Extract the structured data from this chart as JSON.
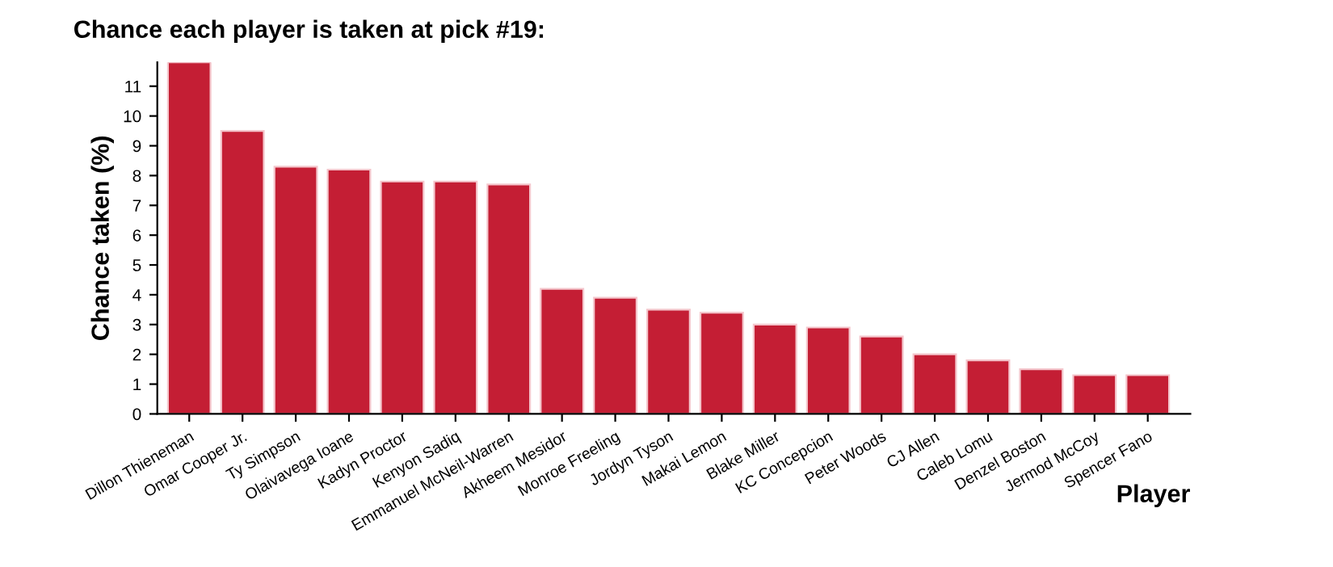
{
  "chart_data": {
    "type": "bar",
    "title": "Chance each player is taken at pick #19:",
    "xlabel": "Player",
    "ylabel": "Chance taken (%)",
    "categories": [
      "Dillon Thieneman",
      "Omar Cooper Jr.",
      "Ty Simpson",
      "Olaivavega Ioane",
      "Kadyn Proctor",
      "Kenyon Sadiq",
      "Emmanuel McNeil-Warren",
      "Akheem Mesidor",
      "Monroe Freeling",
      "Jordyn Tyson",
      "Makai Lemon",
      "Blake Miller",
      "KC Concepcion",
      "Peter Woods",
      "CJ Allen",
      "Caleb Lomu",
      "Denzel Boston",
      "Jermod McCoy",
      "Spencer Fano"
    ],
    "values": [
      11.8,
      9.5,
      8.3,
      8.2,
      7.8,
      7.8,
      7.7,
      4.2,
      3.9,
      3.5,
      3.4,
      3.0,
      2.9,
      2.6,
      2.0,
      1.8,
      1.5,
      1.3,
      1.3
    ],
    "color": "#c41e34",
    "ylim": [
      0,
      11.8
    ],
    "yticks": [
      0,
      1,
      2,
      3,
      4,
      5,
      6,
      7,
      8,
      9,
      10,
      11
    ],
    "grid": false,
    "legend": false
  }
}
